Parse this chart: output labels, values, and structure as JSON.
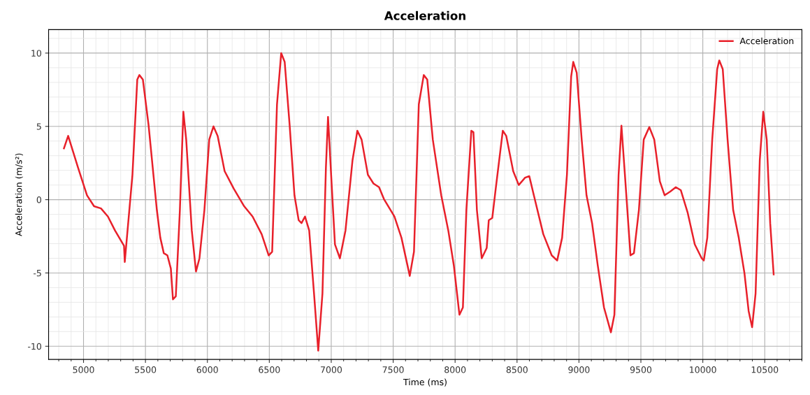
{
  "chart_data": {
    "type": "line",
    "title": "Acceleration",
    "xlabel": "Time (ms)",
    "ylabel": "Acceleration (m/s²)",
    "xlim": [
      4718,
      10800
    ],
    "ylim": [
      -10.9,
      11.6
    ],
    "xticks": [
      5000,
      5500,
      6000,
      6500,
      7000,
      7500,
      8000,
      8500,
      9000,
      9500,
      10000,
      10500
    ],
    "yticks": [
      -10,
      -5,
      0,
      5,
      10
    ],
    "grid": true,
    "legend": "top right",
    "marker": "none",
    "line_style": "solid",
    "series": [
      {
        "name": "Acceleration",
        "color": "#e8202a",
        "x": [
          4842,
          4876,
          4955,
          5028,
          5085,
          5141,
          5197,
          5254,
          5327,
          5333,
          5395,
          5434,
          5451,
          5479,
          5525,
          5592,
          5620,
          5648,
          5677,
          5705,
          5722,
          5745,
          5778,
          5806,
          5829,
          5874,
          5908,
          5936,
          5976,
          6015,
          6049,
          6083,
          6139,
          6213,
          6297,
          6365,
          6438,
          6495,
          6523,
          6562,
          6596,
          6624,
          6664,
          6703,
          6737,
          6760,
          6788,
          6822,
          6861,
          6895,
          6929,
          6957,
          6974,
          7002,
          7030,
          7070,
          7115,
          7172,
          7211,
          7245,
          7296,
          7341,
          7386,
          7425,
          7510,
          7567,
          7634,
          7668,
          7707,
          7747,
          7775,
          7820,
          7888,
          7945,
          7990,
          8035,
          8063,
          8091,
          8131,
          8148,
          8176,
          8215,
          8255,
          8272,
          8300,
          8328,
          8385,
          8413,
          8469,
          8514,
          8565,
          8599,
          8650,
          8712,
          8780,
          8824,
          8864,
          8903,
          8937,
          8954,
          8982,
          9022,
          9061,
          9106,
          9152,
          9202,
          9258,
          9286,
          9320,
          9343,
          9371,
          9416,
          9444,
          9484,
          9523,
          9568,
          9608,
          9653,
          9692,
          9737,
          9782,
          9822,
          9878,
          9935,
          9991,
          10008,
          10036,
          10076,
          10116,
          10133,
          10161,
          10200,
          10245,
          10290,
          10336,
          10370,
          10398,
          10426,
          10460,
          10488,
          10516,
          10544,
          10572
        ],
        "values": [
          3.5,
          4.35,
          2.2,
          0.3,
          -0.45,
          -0.6,
          -1.15,
          -2.1,
          -3.15,
          -4.25,
          1.7,
          8.2,
          8.5,
          8.2,
          5.1,
          -0.7,
          -2.6,
          -3.65,
          -3.8,
          -4.7,
          -6.8,
          -6.6,
          -0.7,
          6.0,
          4.1,
          -2.1,
          -4.9,
          -4.0,
          -0.7,
          4.1,
          5.0,
          4.35,
          1.95,
          0.75,
          -0.45,
          -1.15,
          -2.35,
          -3.8,
          -3.55,
          6.5,
          10.0,
          9.4,
          5.1,
          0.3,
          -1.4,
          -1.6,
          -1.15,
          -2.1,
          -6.4,
          -10.3,
          -6.4,
          2.2,
          5.65,
          1.25,
          -3.05,
          -4.0,
          -2.1,
          2.7,
          4.7,
          4.1,
          1.7,
          1.1,
          0.85,
          0.05,
          -1.15,
          -2.6,
          -5.2,
          -3.55,
          6.5,
          8.5,
          8.2,
          4.1,
          0.3,
          -2.1,
          -4.5,
          -7.85,
          -7.35,
          -0.7,
          4.7,
          4.6,
          -0.7,
          -4.0,
          -3.3,
          -1.4,
          -1.25,
          0.75,
          4.7,
          4.35,
          1.95,
          1.0,
          1.5,
          1.6,
          -0.2,
          -2.35,
          -3.8,
          -4.15,
          -2.6,
          1.7,
          8.4,
          9.4,
          8.65,
          4.1,
          0.3,
          -1.6,
          -4.5,
          -7.35,
          -9.05,
          -7.85,
          1.7,
          5.05,
          1.7,
          -3.8,
          -3.65,
          -0.7,
          4.1,
          4.95,
          4.1,
          1.25,
          0.3,
          0.55,
          0.85,
          0.65,
          -0.9,
          -3.05,
          -4.0,
          -4.15,
          -2.6,
          4.1,
          8.9,
          9.5,
          8.9,
          4.1,
          -0.7,
          -2.6,
          -5.0,
          -7.6,
          -8.7,
          -6.4,
          2.7,
          6.0,
          4.1,
          -1.6,
          -5.1
        ]
      }
    ]
  }
}
